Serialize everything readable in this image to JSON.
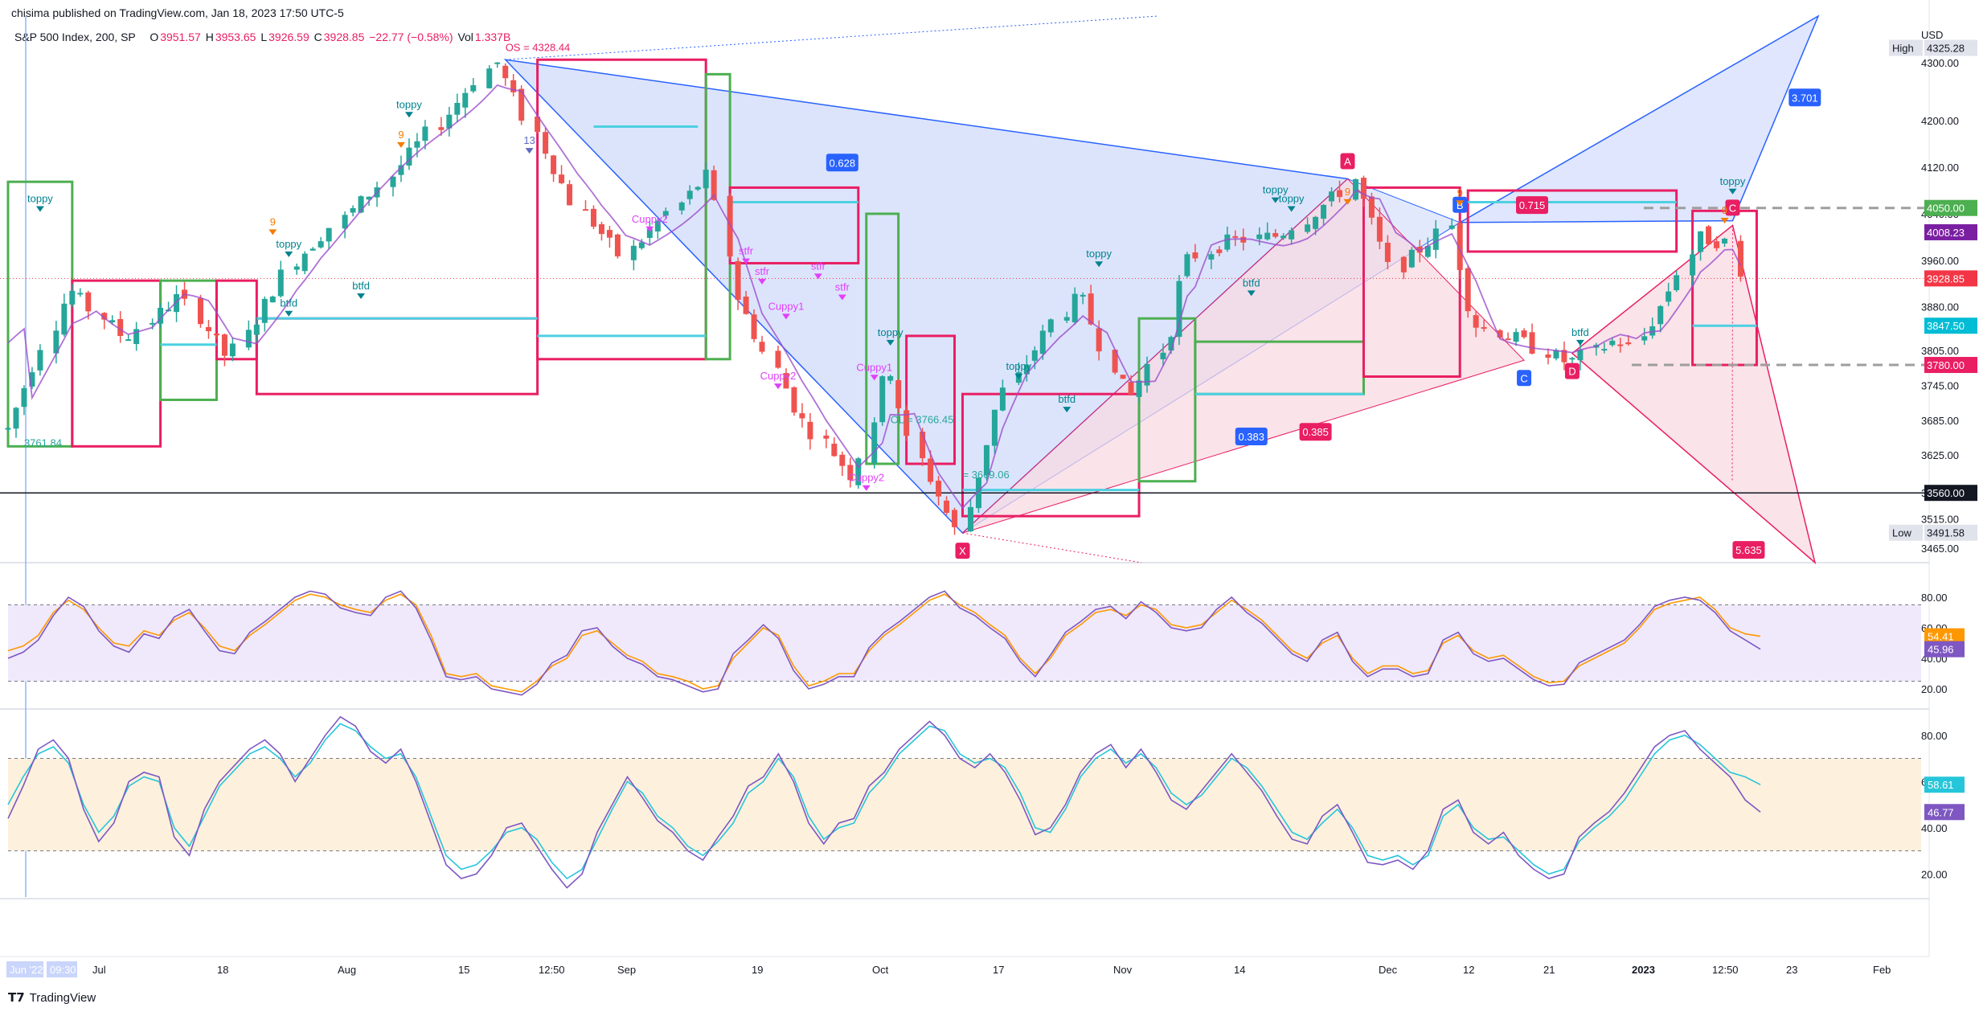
{
  "header": {
    "published": "chisima published on TradingView.com, Jan 18, 2023 17:50 UTC-5"
  },
  "symbol": {
    "name": "S&P 500 Index, 200, SP",
    "open_label": "O",
    "open": "3951.57",
    "high_label": "H",
    "high": "3953.65",
    "low_label": "L",
    "low": "3926.59",
    "close_label": "C",
    "close": "3928.85",
    "change": "−22.77 (−0.58%)",
    "vol_label": "Vol",
    "vol": "1.337B"
  },
  "footer": {
    "brand": "TradingView"
  },
  "colors": {
    "up": "#26a69a",
    "down": "#ef5350",
    "harmonic_fill": "#c9d5fb",
    "bear_fill": "#f8d7e0",
    "rsi_bg": "#efe9fb",
    "stoch_bg": "#fdf0dd",
    "magenta": "#e040fb",
    "teal": "#00bcd4"
  },
  "chart_data": [
    {
      "type": "candlestick",
      "title": "S&P 500 Index, 200, SP",
      "y_axis_unit": "USD",
      "ylim": [
        3440,
        4380
      ],
      "y_ticks": [
        "4300.00",
        "4200.00",
        "4120.00",
        "4040.00",
        "3960.00",
        "3880.00",
        "3805.00",
        "3745.00",
        "3685.00",
        "3625.00",
        "3560.00",
        "3515.00",
        "3465.00"
      ],
      "x_ticks": [
        "Jun '22",
        "09:30",
        "Jul",
        "18",
        "Aug",
        "15",
        "12:50",
        "Sep",
        "19",
        "Oct",
        "17",
        "Nov",
        "14",
        "Dec",
        "12",
        "21",
        "2023",
        "12:50",
        "23",
        "Feb"
      ],
      "x_range": [
        "2022-06-16",
        "2023-02-10"
      ],
      "price_path": [
        [
          "2022-06-16",
          3670
        ],
        [
          "2022-06-24",
          3911
        ],
        [
          "2022-07-01",
          3825
        ],
        [
          "2022-07-08",
          3899
        ],
        [
          "2022-07-14",
          3790
        ],
        [
          "2022-07-22",
          3961
        ],
        [
          "2022-08-02",
          4091
        ],
        [
          "2022-08-10",
          4210
        ],
        [
          "2022-08-16",
          4305
        ],
        [
          "2022-08-19",
          4228
        ],
        [
          "2022-08-26",
          4057
        ],
        [
          "2022-09-01",
          3966
        ],
        [
          "2022-09-12",
          4110
        ],
        [
          "2022-09-15",
          3901
        ],
        [
          "2022-09-23",
          3693
        ],
        [
          "2022-09-30",
          3585
        ],
        [
          "2022-10-04",
          3790
        ],
        [
          "2022-10-07",
          3640
        ],
        [
          "2022-10-13",
          3491
        ],
        [
          "2022-10-18",
          3720
        ],
        [
          "2022-10-25",
          3859
        ],
        [
          "2022-10-28",
          3901
        ],
        [
          "2022-11-03",
          3719
        ],
        [
          "2022-11-08",
          3828
        ],
        [
          "2022-11-10",
          3956
        ],
        [
          "2022-11-15",
          3991
        ],
        [
          "2022-11-22",
          4003
        ],
        [
          "2022-11-30",
          4080
        ],
        [
          "2022-12-01",
          4100
        ],
        [
          "2022-12-06",
          3941
        ],
        [
          "2022-12-13",
          4019
        ],
        [
          "2022-12-16",
          3852
        ],
        [
          "2022-12-22",
          3822
        ],
        [
          "2022-12-28",
          3783
        ],
        [
          "2023-01-03",
          3824
        ],
        [
          "2023-01-05",
          3808
        ],
        [
          "2023-01-09",
          3893
        ],
        [
          "2023-01-13",
          3999
        ],
        [
          "2023-01-17",
          3990
        ],
        [
          "2023-01-18",
          3928.85
        ]
      ],
      "price_labels": [
        {
          "value": "4325.28",
          "label": "High",
          "color": "#e0e3eb"
        },
        {
          "value": "4050.00",
          "color": "#4caf50"
        },
        {
          "value": "4008.23",
          "color": "#7b1fa2"
        },
        {
          "value": "3928.85",
          "color": "#f23645"
        },
        {
          "value": "3847.50",
          "color": "#00bcd4"
        },
        {
          "value": "3780.00",
          "color": "#e91e63"
        },
        {
          "value": "3560.00",
          "color": "#131722"
        },
        {
          "value": "3491.58",
          "label": "Low",
          "color": "#e0e3eb"
        }
      ],
      "harmonic_points": [
        {
          "name": "X",
          "date": "2022-10-13",
          "price": 3491
        },
        {
          "name": "A",
          "date": "2022-11-30",
          "price": 4100
        },
        {
          "name": "B",
          "date": "2022-12-14",
          "price": 4025
        },
        {
          "name": "C",
          "date": "2022-12-22",
          "price": 3788
        },
        {
          "name": "D",
          "date": "2022-12-28",
          "price": 3800
        },
        {
          "name": "C",
          "date": "2023-01-17",
          "price": 4020
        }
      ],
      "annotations": {
        "ratios": [
          "0.628",
          "3.701",
          "0.715",
          "0.383",
          "0.385",
          "5.635"
        ],
        "signals": [
          "toppy",
          "toppy",
          "toppy",
          "toppy",
          "toppy",
          "toppy",
          "toppy",
          "toppy",
          "toppy",
          "btfd",
          "btfd",
          "btfd",
          "btfd",
          "btfd",
          "Cuppy2",
          "Cuppy1",
          "Cuppy2",
          "Cuppy2",
          "Cuppy1",
          "stfr",
          "stfr",
          "stfr",
          "stfr",
          "9",
          "9",
          "9",
          "9",
          "9",
          "13"
        ],
        "levels_text": [
          "OS = 4328.44",
          "OL = 3766.45",
          "= 3669.06",
          "3761.84"
        ]
      }
    },
    {
      "type": "line",
      "title": "",
      "ylim": [
        10,
        90
      ],
      "y_ticks": [
        "80.00",
        "60.00",
        "40.00",
        "20.00"
      ],
      "band": [
        25,
        75
      ],
      "series": [
        {
          "values": [
            45,
            48,
            55,
            70,
            78,
            72,
            60,
            50,
            48,
            58,
            55,
            65,
            70,
            60,
            48,
            45,
            55,
            62,
            70,
            78,
            82,
            80,
            75,
            72,
            70,
            78,
            82,
            75,
            55,
            30,
            28,
            30,
            22,
            20,
            18,
            25,
            35,
            40,
            55,
            58,
            50,
            42,
            38,
            30,
            28,
            25,
            20,
            22,
            40,
            50,
            60,
            55,
            35,
            22,
            25,
            30,
            30,
            45,
            55,
            62,
            70,
            78,
            82,
            75,
            70,
            62,
            55,
            40,
            30,
            40,
            55,
            62,
            70,
            72,
            68,
            75,
            72,
            62,
            60,
            62,
            70,
            78,
            72,
            65,
            55,
            45,
            40,
            50,
            55,
            40,
            30,
            35,
            35,
            30,
            32,
            50,
            55,
            45,
            40,
            42,
            35,
            28,
            24,
            25,
            35,
            40,
            45,
            50,
            60,
            72,
            76,
            78,
            80,
            72,
            60,
            56,
            54.41
          ]
        },
        {
          "values": [
            40,
            44,
            52,
            68,
            80,
            74,
            58,
            48,
            44,
            56,
            53,
            67,
            72,
            58,
            45,
            43,
            57,
            64,
            72,
            80,
            84,
            82,
            73,
            70,
            68,
            80,
            84,
            73,
            52,
            28,
            26,
            28,
            20,
            18,
            16,
            23,
            37,
            42,
            58,
            60,
            48,
            40,
            36,
            28,
            26,
            22,
            18,
            20,
            43,
            52,
            62,
            53,
            32,
            20,
            23,
            28,
            28,
            47,
            57,
            64,
            72,
            80,
            84,
            73,
            68,
            60,
            53,
            38,
            28,
            42,
            57,
            64,
            72,
            74,
            66,
            77,
            70,
            60,
            58,
            60,
            72,
            80,
            70,
            63,
            53,
            43,
            38,
            52,
            57,
            38,
            28,
            33,
            33,
            28,
            30,
            52,
            57,
            43,
            38,
            40,
            33,
            26,
            22,
            23,
            37,
            42,
            47,
            52,
            62,
            74,
            78,
            80,
            78,
            70,
            58,
            52,
            45.96
          ]
        }
      ],
      "value_labels": [
        "54.41",
        "45.96"
      ]
    },
    {
      "type": "line",
      "title": "",
      "ylim": [
        10,
        90
      ],
      "y_ticks": [
        "80.00",
        "60.00",
        "40.00",
        "20.00"
      ],
      "band": [
        30,
        70
      ],
      "series": [
        {
          "values": [
            50,
            62,
            72,
            75,
            68,
            50,
            38,
            45,
            58,
            62,
            60,
            40,
            32,
            45,
            58,
            65,
            72,
            75,
            70,
            62,
            68,
            78,
            85,
            82,
            75,
            70,
            72,
            62,
            45,
            28,
            22,
            24,
            30,
            38,
            40,
            35,
            25,
            18,
            22,
            35,
            48,
            60,
            55,
            45,
            40,
            32,
            28,
            34,
            42,
            55,
            60,
            70,
            62,
            45,
            35,
            40,
            42,
            55,
            62,
            72,
            78,
            84,
            82,
            72,
            68,
            70,
            66,
            55,
            40,
            38,
            48,
            62,
            70,
            74,
            68,
            72,
            66,
            55,
            50,
            54,
            62,
            70,
            66,
            58,
            48,
            38,
            35,
            42,
            48,
            40,
            28,
            26,
            28,
            24,
            28,
            45,
            50,
            40,
            35,
            36,
            30,
            24,
            20,
            22,
            34,
            40,
            45,
            52,
            62,
            72,
            78,
            80,
            76,
            70,
            64,
            62,
            58.61
          ]
        },
        {
          "values": [
            44,
            58,
            74,
            78,
            70,
            48,
            34,
            42,
            60,
            64,
            62,
            36,
            28,
            48,
            60,
            67,
            74,
            78,
            72,
            60,
            70,
            80,
            88,
            84,
            73,
            68,
            74,
            60,
            42,
            24,
            18,
            20,
            28,
            40,
            42,
            32,
            22,
            14,
            20,
            38,
            50,
            62,
            53,
            43,
            38,
            30,
            26,
            36,
            45,
            58,
            62,
            72,
            60,
            42,
            33,
            42,
            44,
            58,
            64,
            74,
            80,
            86,
            80,
            70,
            66,
            72,
            64,
            52,
            37,
            40,
            50,
            64,
            72,
            76,
            66,
            74,
            64,
            52,
            48,
            56,
            64,
            72,
            64,
            56,
            45,
            35,
            33,
            45,
            50,
            38,
            25,
            24,
            26,
            22,
            30,
            48,
            52,
            38,
            33,
            38,
            28,
            22,
            18,
            20,
            36,
            42,
            47,
            55,
            65,
            75,
            80,
            82,
            74,
            68,
            62,
            52,
            46.77
          ]
        }
      ],
      "value_labels": [
        "58.61",
        "46.77"
      ]
    }
  ]
}
